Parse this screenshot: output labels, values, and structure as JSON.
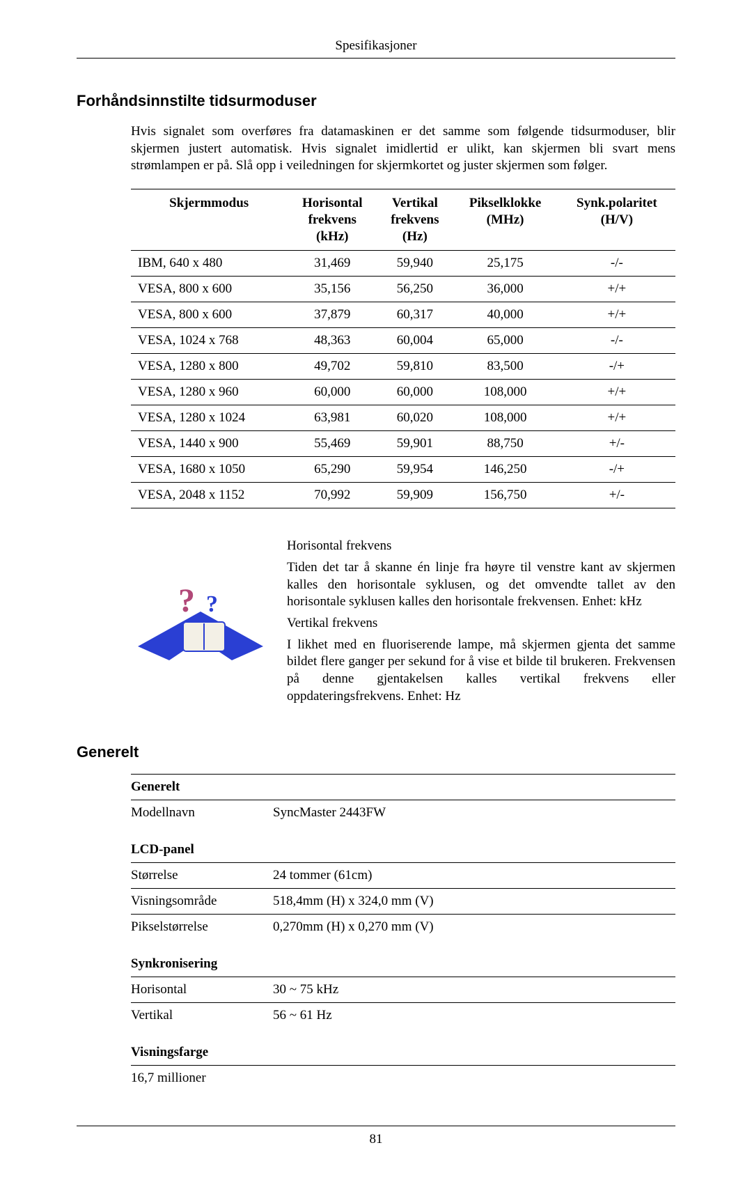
{
  "header": {
    "running_title": "Spesifikasjoner"
  },
  "section1": {
    "title": "Forhåndsinnstilte tidsurmoduser",
    "intro": "Hvis signalet som overføres fra datamaskinen er det samme som følgende tidsurmoduser, blir skjermen justert automatisk. Hvis signalet imidlertid er ulikt, kan skjermen bli svart mens strømlampen er på. Slå opp i veiledningen for skjermkortet og juster skjermen som følger."
  },
  "timing_table": {
    "headers": {
      "c1": "Skjermmodus",
      "c2a": "Horisontal",
      "c2b": "frekvens",
      "c2c": "(kHz)",
      "c3a": "Vertikal",
      "c3b": "frekvens",
      "c3c": "(Hz)",
      "c4a": "Pikselklokke",
      "c4b": "(MHz)",
      "c5a": "Synk.polaritet",
      "c5b": "(H/V)"
    },
    "rows": [
      {
        "mode": "IBM, 640 x 480",
        "h": "31,469",
        "v": "59,940",
        "p": "25,175",
        "s": "-/-"
      },
      {
        "mode": "VESA, 800 x 600",
        "h": "35,156",
        "v": "56,250",
        "p": "36,000",
        "s": "+/+"
      },
      {
        "mode": "VESA, 800 x 600",
        "h": "37,879",
        "v": "60,317",
        "p": "40,000",
        "s": "+/+"
      },
      {
        "mode": "VESA, 1024 x 768",
        "h": "48,363",
        "v": "60,004",
        "p": "65,000",
        "s": "-/-"
      },
      {
        "mode": "VESA, 1280 x 800",
        "h": "49,702",
        "v": "59,810",
        "p": "83,500",
        "s": "-/+"
      },
      {
        "mode": "VESA, 1280 x 960",
        "h": "60,000",
        "v": "60,000",
        "p": "108,000",
        "s": "+/+"
      },
      {
        "mode": "VESA, 1280 x 1024",
        "h": "63,981",
        "v": "60,020",
        "p": "108,000",
        "s": "+/+"
      },
      {
        "mode": "VESA, 1440 x 900",
        "h": "55,469",
        "v": "59,901",
        "p": "88,750",
        "s": "+/-"
      },
      {
        "mode": "VESA, 1680 x 1050",
        "h": "65,290",
        "v": "59,954",
        "p": "146,250",
        "s": "-/+"
      },
      {
        "mode": "VESA, 2048 x 1152",
        "h": "70,992",
        "v": "59,909",
        "p": "156,750",
        "s": "+/-"
      }
    ]
  },
  "notes": {
    "h_title": "Horisontal frekvens",
    "h_body": "Tiden det tar å skanne én linje fra høyre til venstre kant av skjermen kalles den horisontale syklusen, og det omvendte tallet av den horisontale syklusen kalles den horisontale frekvensen. Enhet: kHz",
    "v_title": "Vertikal frekvens",
    "v_body": "I likhet med en fluoriserende lampe, må skjermen gjenta det samme bildet flere ganger per sekund for å vise et bilde til brukeren. Frekvensen på denne gjentakelsen kalles vertikal frekvens eller oppdateringsfrekvens. Enhet: Hz"
  },
  "section2": {
    "title": "Generelt"
  },
  "spec": {
    "g1": "Generelt",
    "g1r1l": "Modellnavn",
    "g1r1v": "SyncMaster 2443FW",
    "g2": "LCD-panel",
    "g2r1l": "Størrelse",
    "g2r1v": "24 tommer (61cm)",
    "g2r2l": "Visningsområde",
    "g2r2v": "518,4mm (H) x 324,0 mm (V)",
    "g2r3l": "Pikselstørrelse",
    "g2r3v": "0,270mm (H) x 0,270 mm (V)",
    "g3": "Synkronisering",
    "g3r1l": "Horisontal",
    "g3r1v": "30 ~ 75 kHz",
    "g3r2l": "Vertikal",
    "g3r2v": "56 ~ 61 Hz",
    "g4": "Visningsfarge",
    "g4r1l": "16,7 millioner"
  },
  "footer": {
    "page_number": "81"
  },
  "colors": {
    "icon_blue": "#2a3fd3",
    "icon_pink": "#b14878",
    "icon_page": "#f3f0e6"
  }
}
